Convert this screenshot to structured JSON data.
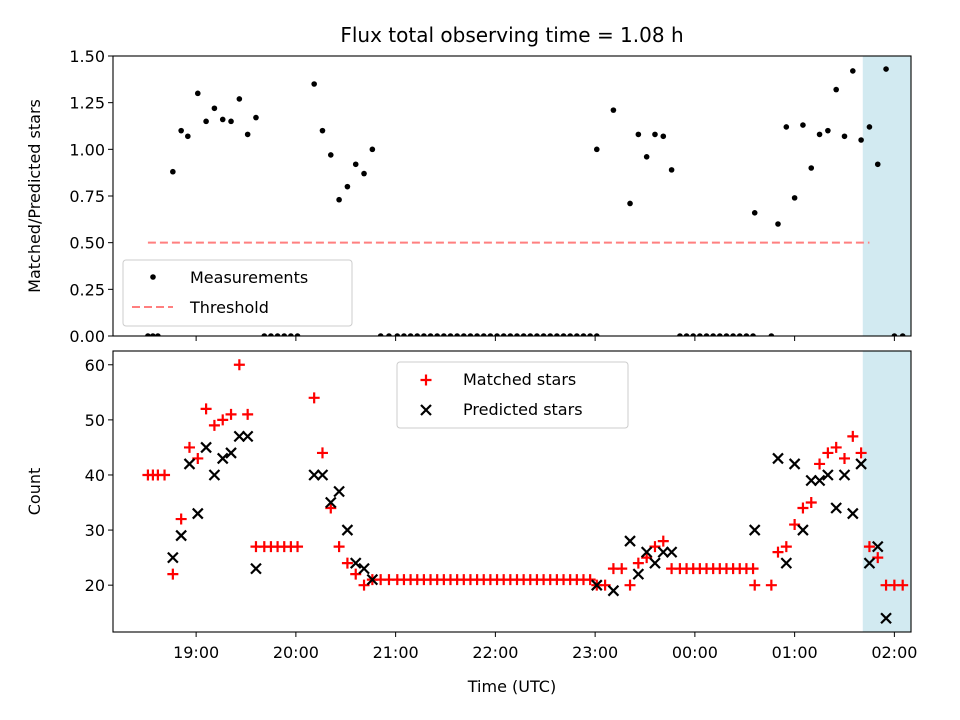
{
  "title": "Flux total observing time = 1.08 h",
  "colors": {
    "measurement": "#000000",
    "threshold": "#ff7f7f",
    "matched": "#ff0000",
    "predicted": "#000000",
    "highlight": "#add8e6"
  },
  "chart_data": [
    {
      "type": "scatter",
      "panel": "top",
      "title": "Flux total observing time = 1.08 h",
      "xlabel": "",
      "ylabel": "Matched/Predicted stars",
      "x_unit": "minutes since 18:00 UTC (tick labels show clock time)",
      "xlim": [
        1090,
        1570
      ],
      "ylim": [
        0,
        1.5
      ],
      "yticks": [
        "0.00",
        "0.25",
        "0.50",
        "0.75",
        "1.00",
        "1.25",
        "1.50"
      ],
      "xticks_minutes": [
        1140,
        1200,
        1260,
        1320,
        1380,
        1440,
        1500,
        1560
      ],
      "legend": {
        "placement": "lower-left",
        "entries": [
          "Measurements",
          "Threshold"
        ]
      },
      "highlight_span": [
        1541,
        1606
      ],
      "threshold": {
        "name": "Threshold",
        "y": 0.5,
        "x_range": [
          1111,
          1545
        ]
      },
      "series": [
        {
          "name": "Measurements",
          "points": [
            [
              1111,
              0
            ],
            [
              1114,
              0
            ],
            [
              1117,
              0
            ],
            [
              1126,
              0.88
            ],
            [
              1131,
              1.1
            ],
            [
              1135,
              1.07
            ],
            [
              1141,
              1.3
            ],
            [
              1146,
              1.15
            ],
            [
              1151,
              1.22
            ],
            [
              1156,
              1.16
            ],
            [
              1161,
              1.15
            ],
            [
              1166,
              1.27
            ],
            [
              1171,
              1.08
            ],
            [
              1176,
              1.17
            ],
            [
              1181,
              0
            ],
            [
              1185,
              0
            ],
            [
              1189,
              0
            ],
            [
              1193,
              0
            ],
            [
              1197,
              0
            ],
            [
              1201,
              0
            ],
            [
              1211,
              1.35
            ],
            [
              1216,
              1.1
            ],
            [
              1221,
              0.97
            ],
            [
              1226,
              0.73
            ],
            [
              1231,
              0.8
            ],
            [
              1236,
              0.92
            ],
            [
              1241,
              0.87
            ],
            [
              1246,
              1.0
            ],
            [
              1251,
              0
            ],
            [
              1256,
              0
            ],
            [
              1261,
              0
            ],
            [
              1265,
              0
            ],
            [
              1269,
              0
            ],
            [
              1273,
              0
            ],
            [
              1277,
              0
            ],
            [
              1281,
              0
            ],
            [
              1285,
              0
            ],
            [
              1289,
              0
            ],
            [
              1293,
              0
            ],
            [
              1297,
              0
            ],
            [
              1301,
              0
            ],
            [
              1305,
              0
            ],
            [
              1309,
              0
            ],
            [
              1313,
              0
            ],
            [
              1317,
              0
            ],
            [
              1321,
              0
            ],
            [
              1325,
              0
            ],
            [
              1329,
              0
            ],
            [
              1333,
              0
            ],
            [
              1337,
              0
            ],
            [
              1341,
              0
            ],
            [
              1345,
              0
            ],
            [
              1349,
              0
            ],
            [
              1353,
              0
            ],
            [
              1357,
              0
            ],
            [
              1361,
              0
            ],
            [
              1365,
              0
            ],
            [
              1369,
              0
            ],
            [
              1373,
              0
            ],
            [
              1377,
              0
            ],
            [
              1381,
              0
            ],
            [
              1381,
              1.0
            ],
            [
              1391,
              1.21
            ],
            [
              1401,
              0.71
            ],
            [
              1406,
              1.08
            ],
            [
              1411,
              0.96
            ],
            [
              1416,
              1.08
            ],
            [
              1421,
              1.07
            ],
            [
              1426,
              0.89
            ],
            [
              1431,
              0
            ],
            [
              1435,
              0
            ],
            [
              1439,
              0
            ],
            [
              1443,
              0
            ],
            [
              1447,
              0
            ],
            [
              1451,
              0
            ],
            [
              1455,
              0
            ],
            [
              1459,
              0
            ],
            [
              1463,
              0
            ],
            [
              1467,
              0
            ],
            [
              1471,
              0
            ],
            [
              1475,
              0
            ],
            [
              1476,
              0.66
            ],
            [
              1486,
              0
            ],
            [
              1490,
              0.6
            ],
            [
              1495,
              1.12
            ],
            [
              1500,
              0.74
            ],
            [
              1505,
              1.13
            ],
            [
              1510,
              0.9
            ],
            [
              1515,
              1.08
            ],
            [
              1520,
              1.1
            ],
            [
              1525,
              1.32
            ],
            [
              1530,
              1.07
            ],
            [
              1535,
              1.42
            ],
            [
              1540,
              1.05
            ],
            [
              1545,
              1.12
            ],
            [
              1550,
              0.92
            ],
            [
              1555,
              1.43
            ],
            [
              1560,
              0
            ],
            [
              1565,
              0
            ]
          ]
        }
      ]
    },
    {
      "type": "scatter",
      "panel": "bottom",
      "title": "",
      "xlabel": "Time (UTC)",
      "ylabel": "Count",
      "x_unit": "minutes since 18:00 UTC (tick labels show clock time)",
      "xlim": [
        1090,
        1570
      ],
      "ylim": [
        11.5,
        62.5
      ],
      "yticks": [
        "20",
        "30",
        "40",
        "50",
        "60"
      ],
      "xtick_labels": [
        "19:00",
        "20:00",
        "21:00",
        "22:00",
        "23:00",
        "00:00",
        "01:00",
        "02:00"
      ],
      "xticks_minutes": [
        1140,
        1200,
        1260,
        1320,
        1380,
        1440,
        1500,
        1560
      ],
      "legend": {
        "placement": "upper-center",
        "entries": [
          "Matched stars",
          "Predicted stars"
        ]
      },
      "highlight_span": [
        1541,
        1606
      ],
      "series": [
        {
          "name": "Matched stars",
          "marker": "plus",
          "points": [
            [
              1111,
              40
            ],
            [
              1114,
              40
            ],
            [
              1117,
              40
            ],
            [
              1121,
              40
            ],
            [
              1126,
              22
            ],
            [
              1131,
              32
            ],
            [
              1136,
              45
            ],
            [
              1141,
              43
            ],
            [
              1146,
              52
            ],
            [
              1151,
              49
            ],
            [
              1156,
              50
            ],
            [
              1161,
              51
            ],
            [
              1166,
              60
            ],
            [
              1171,
              51
            ],
            [
              1176,
              27
            ],
            [
              1181,
              27
            ],
            [
              1185,
              27
            ],
            [
              1189,
              27
            ],
            [
              1193,
              27
            ],
            [
              1197,
              27
            ],
            [
              1201,
              27
            ],
            [
              1211,
              54
            ],
            [
              1216,
              44
            ],
            [
              1221,
              34
            ],
            [
              1226,
              27
            ],
            [
              1231,
              24
            ],
            [
              1236,
              22
            ],
            [
              1241,
              20
            ],
            [
              1246,
              21
            ],
            [
              1251,
              21
            ],
            [
              1256,
              21
            ],
            [
              1261,
              21
            ],
            [
              1265,
              21
            ],
            [
              1269,
              21
            ],
            [
              1273,
              21
            ],
            [
              1277,
              21
            ],
            [
              1281,
              21
            ],
            [
              1285,
              21
            ],
            [
              1289,
              21
            ],
            [
              1293,
              21
            ],
            [
              1297,
              21
            ],
            [
              1301,
              21
            ],
            [
              1305,
              21
            ],
            [
              1309,
              21
            ],
            [
              1313,
              21
            ],
            [
              1317,
              21
            ],
            [
              1321,
              21
            ],
            [
              1325,
              21
            ],
            [
              1329,
              21
            ],
            [
              1333,
              21
            ],
            [
              1337,
              21
            ],
            [
              1341,
              21
            ],
            [
              1345,
              21
            ],
            [
              1349,
              21
            ],
            [
              1353,
              21
            ],
            [
              1357,
              21
            ],
            [
              1361,
              21
            ],
            [
              1365,
              21
            ],
            [
              1369,
              21
            ],
            [
              1373,
              21
            ],
            [
              1377,
              21
            ],
            [
              1381,
              20
            ],
            [
              1386,
              20
            ],
            [
              1391,
              23
            ],
            [
              1396,
              23
            ],
            [
              1401,
              20
            ],
            [
              1406,
              24
            ],
            [
              1411,
              25
            ],
            [
              1416,
              27
            ],
            [
              1421,
              28
            ],
            [
              1426,
              23
            ],
            [
              1431,
              23
            ],
            [
              1435,
              23
            ],
            [
              1439,
              23
            ],
            [
              1443,
              23
            ],
            [
              1447,
              23
            ],
            [
              1451,
              23
            ],
            [
              1455,
              23
            ],
            [
              1459,
              23
            ],
            [
              1463,
              23
            ],
            [
              1467,
              23
            ],
            [
              1471,
              23
            ],
            [
              1475,
              23
            ],
            [
              1476,
              20
            ],
            [
              1486,
              20
            ],
            [
              1490,
              26
            ],
            [
              1495,
              27
            ],
            [
              1500,
              31
            ],
            [
              1505,
              34
            ],
            [
              1510,
              35
            ],
            [
              1515,
              42
            ],
            [
              1520,
              44
            ],
            [
              1525,
              45
            ],
            [
              1530,
              43
            ],
            [
              1535,
              47
            ],
            [
              1540,
              44
            ],
            [
              1545,
              27
            ],
            [
              1550,
              25
            ],
            [
              1555,
              20
            ],
            [
              1560,
              20
            ],
            [
              1565,
              20
            ]
          ]
        },
        {
          "name": "Predicted stars",
          "marker": "x",
          "points": [
            [
              1126,
              25
            ],
            [
              1131,
              29
            ],
            [
              1136,
              42
            ],
            [
              1141,
              33
            ],
            [
              1146,
              45
            ],
            [
              1151,
              40
            ],
            [
              1156,
              43
            ],
            [
              1161,
              44
            ],
            [
              1166,
              47
            ],
            [
              1171,
              47
            ],
            [
              1176,
              23
            ],
            [
              1211,
              40
            ],
            [
              1216,
              40
            ],
            [
              1221,
              35
            ],
            [
              1226,
              37
            ],
            [
              1231,
              30
            ],
            [
              1236,
              24
            ],
            [
              1241,
              23
            ],
            [
              1246,
              21
            ],
            [
              1381,
              20
            ],
            [
              1391,
              19
            ],
            [
              1401,
              28
            ],
            [
              1406,
              22
            ],
            [
              1411,
              26
            ],
            [
              1416,
              24
            ],
            [
              1421,
              26
            ],
            [
              1426,
              26
            ],
            [
              1476,
              30
            ],
            [
              1490,
              43
            ],
            [
              1495,
              24
            ],
            [
              1500,
              42
            ],
            [
              1505,
              30
            ],
            [
              1510,
              39
            ],
            [
              1515,
              39
            ],
            [
              1520,
              40
            ],
            [
              1525,
              34
            ],
            [
              1530,
              40
            ],
            [
              1535,
              33
            ],
            [
              1540,
              42
            ],
            [
              1545,
              24
            ],
            [
              1550,
              27
            ],
            [
              1555,
              14
            ]
          ]
        }
      ]
    }
  ]
}
